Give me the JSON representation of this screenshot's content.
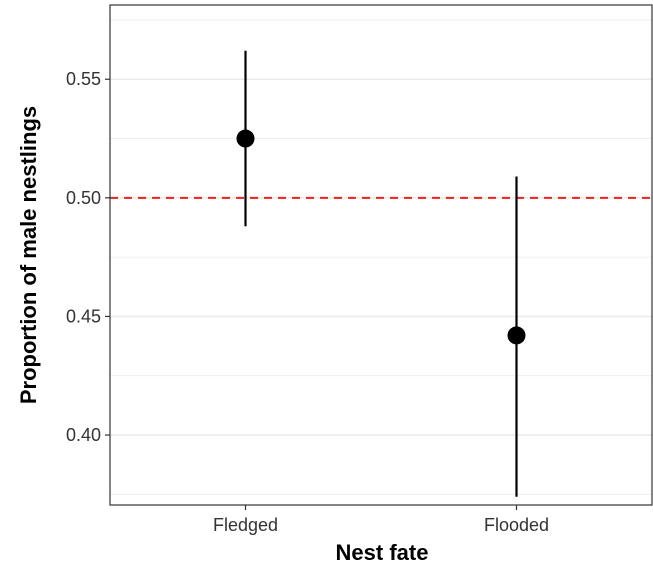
{
  "chart_data": {
    "type": "scatter",
    "title": "",
    "xlabel": "Nest fate",
    "ylabel": "Proportion of male nestlings",
    "categories": [
      "Fledged",
      "Flooded"
    ],
    "values": [
      0.525,
      0.442
    ],
    "error_low": [
      0.488,
      0.374
    ],
    "error_high": [
      0.562,
      0.509
    ],
    "reference_line": {
      "y": 0.5,
      "style": "dashed",
      "color": "#e8221c"
    },
    "y_ticks": [
      0.4,
      0.45,
      0.5,
      0.55
    ],
    "y_tick_labels": [
      "0.40",
      "0.45",
      "0.50",
      "0.55"
    ],
    "ylim": [
      0.3705,
      0.5813
    ],
    "grid": true,
    "legend": "none",
    "colors": {
      "point": "#000000",
      "errorbar": "#000000",
      "grid": "#ebebeb",
      "panel_border": "#333333"
    }
  }
}
